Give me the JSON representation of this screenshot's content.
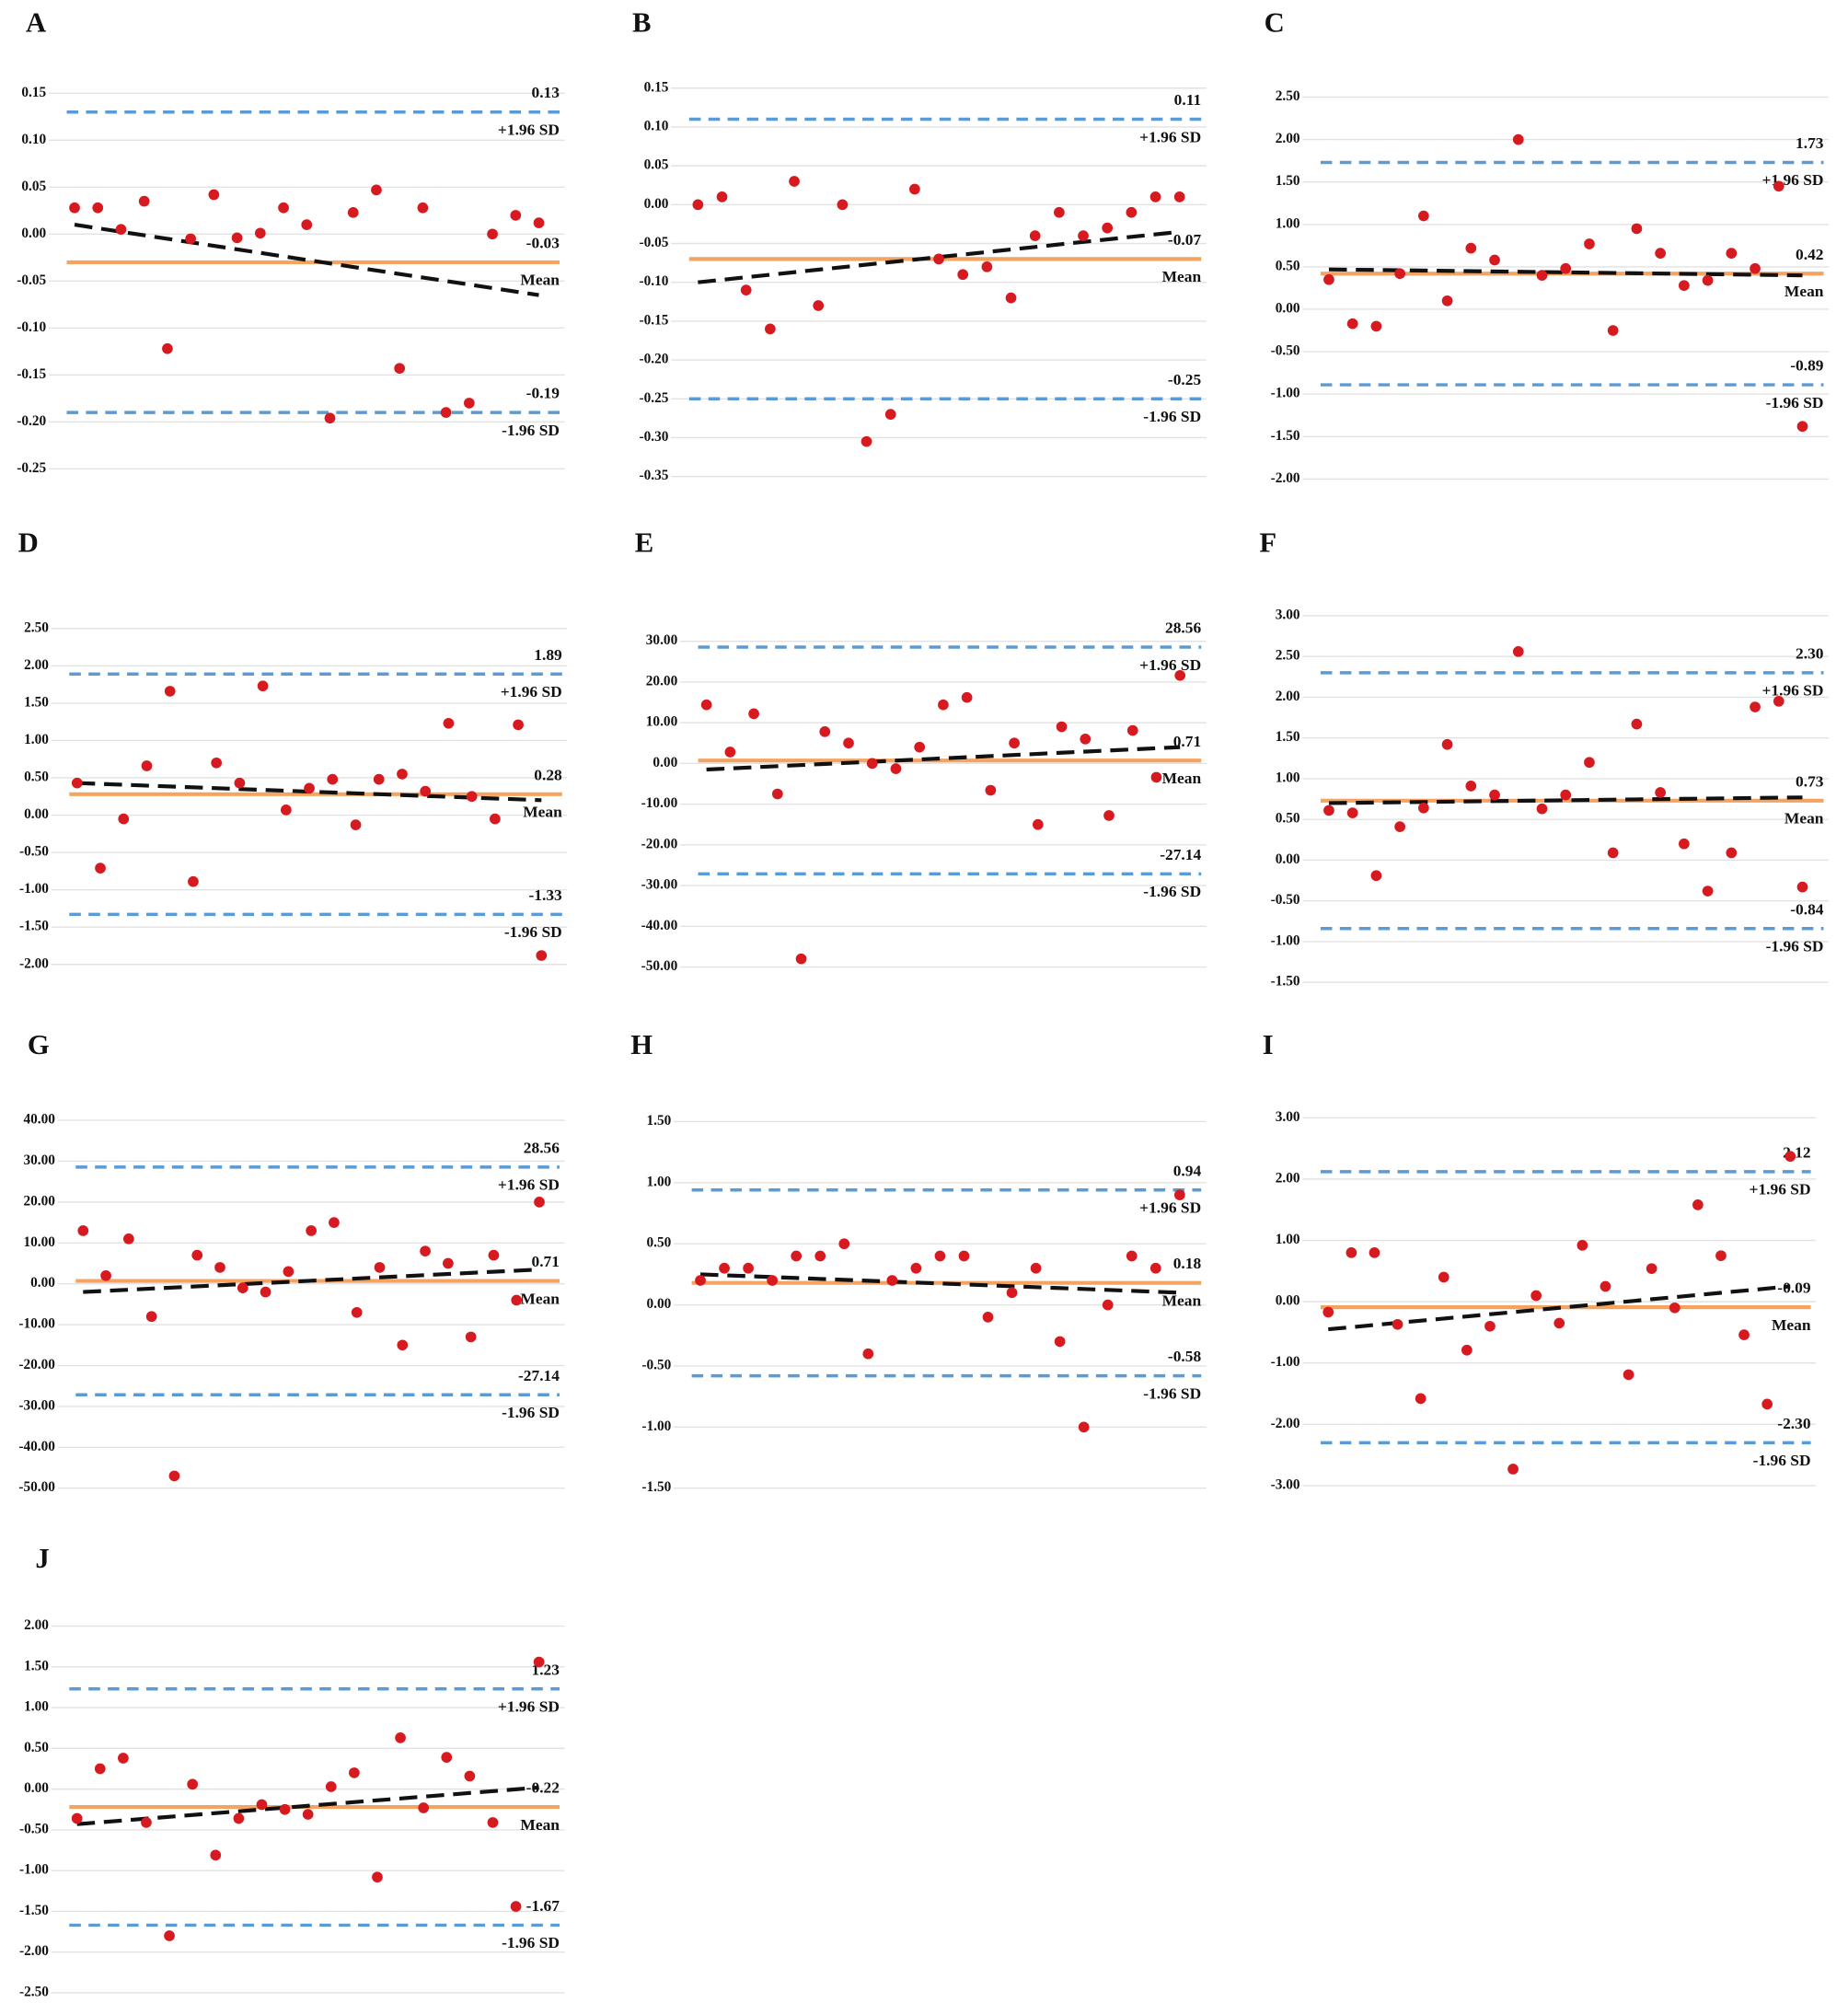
{
  "chart_data": [
    {
      "type": "scatter",
      "title": "A",
      "ylim": [
        -0.25,
        0.15
      ],
      "yticks": [
        0.15,
        {
          "value": 0.1,
          "label": "0.10"
        },
        0.05,
        {
          "value": 0,
          "label": "0.00"
        },
        -0.05,
        {
          "value": -0.1,
          "label": "-0.10"
        },
        -0.15,
        {
          "value": -0.2,
          "label": "-0.20"
        },
        -0.25
      ],
      "values": [
        0.028,
        0.028,
        0.005,
        0.035,
        -0.122,
        -0.005,
        0.042,
        -0.004,
        0.001,
        0.028,
        0.01,
        -0.196,
        0.023,
        0.047,
        -0.143,
        0.028,
        -0.19,
        -0.18,
        0.0,
        0.02,
        0.012
      ],
      "limits": [
        {
          "name": "+1.96 SD",
          "value": 0.13
        },
        {
          "name": "Mean",
          "value": -0.03
        },
        {
          "name": "-1.96 SD",
          "value": -0.19
        }
      ],
      "trend": [
        0.01,
        -0.065
      ]
    },
    {
      "type": "scatter",
      "title": "B",
      "ylim": [
        -0.35,
        0.15
      ],
      "yticks": [
        0.15,
        {
          "value": 0.1,
          "label": "0.10"
        },
        0.05,
        {
          "value": 0,
          "label": "0.00"
        },
        -0.05,
        {
          "value": -0.1,
          "label": "-0.10"
        },
        -0.15,
        {
          "value": -0.2,
          "label": "-0.20"
        },
        -0.25,
        {
          "value": -0.3,
          "label": "-0.30"
        },
        -0.35
      ],
      "values": [
        0.0,
        0.01,
        -0.11,
        -0.16,
        0.03,
        -0.13,
        0.0,
        -0.305,
        -0.27,
        0.02,
        -0.07,
        -0.09,
        -0.08,
        -0.12,
        -0.04,
        -0.01,
        -0.04,
        -0.03,
        -0.01,
        0.01,
        0.01
      ],
      "limits": [
        {
          "name": "+1.96 SD",
          "value": 0.11
        },
        {
          "name": "Mean",
          "value": -0.07
        },
        {
          "name": "-1.96 SD",
          "value": -0.25
        }
      ],
      "trend": [
        -0.1,
        -0.035
      ]
    },
    {
      "type": "scatter",
      "title": "C",
      "ylim": [
        -2,
        2.5
      ],
      "yticks": [
        {
          "value": 2.5,
          "label": "2.50"
        },
        {
          "value": 2,
          "label": "2.00"
        },
        {
          "value": 1.5,
          "label": "1.50"
        },
        {
          "value": 1,
          "label": "1.00"
        },
        {
          "value": 0.5,
          "label": "0.50"
        },
        {
          "value": 0,
          "label": "0.00"
        },
        {
          "value": -0.5,
          "label": "-0.50"
        },
        {
          "value": -1,
          "label": "-1.00"
        },
        {
          "value": -1.5,
          "label": "-1.50"
        },
        {
          "value": -2,
          "label": "-2.00"
        }
      ],
      "values": [
        0.35,
        -0.17,
        -0.2,
        0.42,
        1.1,
        0.1,
        0.72,
        0.58,
        2.0,
        0.4,
        0.48,
        0.77,
        -0.25,
        0.95,
        0.66,
        0.28,
        0.34,
        0.66,
        0.48,
        1.45,
        -1.38
      ],
      "limits": [
        {
          "name": "+1.96 SD",
          "value": 1.73
        },
        {
          "name": "Mean",
          "value": 0.42
        },
        {
          "name": "-1.96 SD",
          "value": -0.89
        }
      ],
      "trend": [
        0.47,
        0.4
      ]
    },
    {
      "type": "scatter",
      "title": "D",
      "ylim": [
        -2,
        2.5
      ],
      "yticks": [
        {
          "value": 2.5,
          "label": "2.50"
        },
        {
          "value": 2,
          "label": "2.00"
        },
        {
          "value": 1.5,
          "label": "1.50"
        },
        {
          "value": 1,
          "label": "1.00"
        },
        {
          "value": 0.5,
          "label": "0.50"
        },
        {
          "value": 0,
          "label": "0.00"
        },
        {
          "value": -0.5,
          "label": "-0.50"
        },
        {
          "value": -1,
          "label": "-1.00"
        },
        {
          "value": -1.5,
          "label": "-1.50"
        },
        {
          "value": -2,
          "label": "-2.00"
        }
      ],
      "values": [
        0.43,
        -0.71,
        -0.05,
        0.66,
        1.66,
        -0.89,
        0.7,
        0.43,
        1.73,
        0.07,
        0.36,
        0.48,
        -0.13,
        0.48,
        0.55,
        0.32,
        1.23,
        0.25,
        -0.05,
        1.21,
        -1.88
      ],
      "limits": [
        {
          "name": "+1.96 SD",
          "value": 1.89
        },
        {
          "name": "Mean",
          "value": 0.28
        },
        {
          "name": "-1.96 SD",
          "value": -1.33
        }
      ],
      "trend": [
        0.43,
        0.2
      ]
    },
    {
      "type": "scatter",
      "title": "E",
      "ylim": [
        -50,
        30
      ],
      "yticks": [
        {
          "value": 30,
          "label": "30.00"
        },
        {
          "value": 20,
          "label": "20.00"
        },
        {
          "value": 10,
          "label": "10.00"
        },
        {
          "value": 0,
          "label": "0.00"
        },
        {
          "value": -10,
          "label": "-10.00"
        },
        {
          "value": -20,
          "label": "-20.00"
        },
        {
          "value": -30,
          "label": "-30.00"
        },
        {
          "value": -40,
          "label": "-40.00"
        },
        {
          "value": -50,
          "label": "-50.00"
        }
      ],
      "values": [
        14.4,
        2.8,
        12.2,
        -7.5,
        -48,
        7.8,
        5,
        0,
        -1.3,
        4,
        14.4,
        16.2,
        -6.6,
        5,
        -15,
        9,
        6,
        -12.8,
        8.1,
        -3.4,
        21.6
      ],
      "limits": [
        {
          "name": "+1.96 SD",
          "value": 28.56
        },
        {
          "name": "Mean",
          "value": 0.71
        },
        {
          "name": "-1.96 SD",
          "value": -27.14
        }
      ],
      "trend": [
        -1.5,
        4
      ]
    },
    {
      "type": "scatter",
      "title": "F",
      "ylim": [
        -1.5,
        3
      ],
      "yticks": [
        {
          "value": 3,
          "label": "3.00"
        },
        {
          "value": 2.5,
          "label": "2.50"
        },
        {
          "value": 2,
          "label": "2.00"
        },
        {
          "value": 1.5,
          "label": "1.50"
        },
        {
          "value": 1,
          "label": "1.00"
        },
        {
          "value": 0.5,
          "label": "0.50"
        },
        {
          "value": 0,
          "label": "0.00"
        },
        {
          "value": -0.5,
          "label": "-0.50"
        },
        {
          "value": -1,
          "label": "-1.00"
        },
        {
          "value": -1.5,
          "label": "-1.50"
        }
      ],
      "values": [
        0.61,
        0.58,
        -0.19,
        0.41,
        0.64,
        1.42,
        0.91,
        0.8,
        2.56,
        0.63,
        0.8,
        1.2,
        0.09,
        1.67,
        0.83,
        0.2,
        -0.38,
        0.09,
        1.88,
        1.95,
        -0.33
      ],
      "limits": [
        {
          "name": "+1.96 SD",
          "value": 2.3,
          "value_label": "2.30"
        },
        {
          "name": "Mean",
          "value": 0.73
        },
        {
          "name": "-1.96 SD",
          "value": -0.84
        }
      ],
      "trend": [
        0.7,
        0.77
      ]
    },
    {
      "type": "scatter",
      "title": "G",
      "ylim": [
        -50,
        40
      ],
      "yticks": [
        {
          "value": 40,
          "label": "40.00"
        },
        {
          "value": 30,
          "label": "30.00"
        },
        {
          "value": 20,
          "label": "20.00"
        },
        {
          "value": 10,
          "label": "10.00"
        },
        {
          "value": 0,
          "label": "0.00"
        },
        {
          "value": -10,
          "label": "-10.00"
        },
        {
          "value": -20,
          "label": "-20.00"
        },
        {
          "value": -30,
          "label": "-30.00"
        },
        {
          "value": -40,
          "label": "-40.00"
        },
        {
          "value": -50,
          "label": "-50.00"
        }
      ],
      "values": [
        13,
        2,
        11,
        -8,
        -47,
        7,
        4,
        -1,
        -2,
        3,
        13,
        15,
        -7,
        4,
        -15,
        8,
        5,
        -13,
        7,
        -4,
        20
      ],
      "limits": [
        {
          "name": "+1.96 SD",
          "value": 28.56
        },
        {
          "name": "Mean",
          "value": 0.71
        },
        {
          "name": "-1.96 SD",
          "value": -27.14
        }
      ],
      "trend": [
        -2,
        3.5
      ]
    },
    {
      "type": "scatter",
      "title": "H",
      "ylim": [
        -1.5,
        1.5
      ],
      "yticks": [
        {
          "value": 1.5,
          "label": "1.50"
        },
        {
          "value": 1,
          "label": "1.00"
        },
        {
          "value": 0.5,
          "label": "0.50"
        },
        {
          "value": 0,
          "label": "0.00"
        },
        {
          "value": -0.5,
          "label": "-0.50"
        },
        {
          "value": -1,
          "label": "-1.00"
        },
        {
          "value": -1.5,
          "label": "-1.50"
        }
      ],
      "values": [
        0.2,
        0.3,
        0.3,
        0.2,
        0.4,
        0.4,
        0.5,
        -0.4,
        0.2,
        0.3,
        0.4,
        0.4,
        -0.1,
        0.1,
        0.3,
        -0.3,
        -1.0,
        0.0,
        0.4,
        0.3,
        0.9
      ],
      "limits": [
        {
          "name": "+1.96 SD",
          "value": 0.94
        },
        {
          "name": "Mean",
          "value": 0.18
        },
        {
          "name": "-1.96 SD",
          "value": -0.58
        }
      ],
      "trend": [
        0.25,
        0.1
      ]
    },
    {
      "type": "scatter",
      "title": "I",
      "ylim": [
        -3,
        3
      ],
      "yticks": [
        {
          "value": 3,
          "label": "3.00"
        },
        {
          "value": 2,
          "label": "2.00"
        },
        {
          "value": 1,
          "label": "1.00"
        },
        {
          "value": 0,
          "label": "0.00"
        },
        {
          "value": -1,
          "label": "-1.00"
        },
        {
          "value": -2,
          "label": "-2.00"
        },
        {
          "value": -3,
          "label": "-3.00"
        }
      ],
      "values": [
        -0.17,
        0.8,
        0.8,
        -0.37,
        -1.58,
        0.4,
        -0.79,
        -0.4,
        -2.73,
        0.1,
        -0.35,
        0.92,
        0.25,
        -1.19,
        0.54,
        -0.1,
        1.58,
        0.75,
        -0.54,
        -1.67,
        2.37
      ],
      "limits": [
        {
          "name": "+1.96 SD",
          "value": 2.12
        },
        {
          "name": "Mean",
          "value": -0.09
        },
        {
          "name": "-1.96 SD",
          "value": -2.3,
          "value_label": "-2.30"
        }
      ],
      "trend": [
        -0.45,
        0.25
      ]
    },
    {
      "type": "scatter",
      "title": "J",
      "ylim": [
        -2.5,
        2
      ],
      "yticks": [
        {
          "value": 2,
          "label": "2.00"
        },
        {
          "value": 1.5,
          "label": "1.50"
        },
        {
          "value": 1,
          "label": "1.00"
        },
        {
          "value": 0.5,
          "label": "0.50"
        },
        {
          "value": 0,
          "label": "0.00"
        },
        {
          "value": -0.5,
          "label": "-0.50"
        },
        {
          "value": -1,
          "label": "-1.00"
        },
        {
          "value": -1.5,
          "label": "-1.50"
        },
        {
          "value": -2,
          "label": "-2.00"
        },
        {
          "value": -2.5,
          "label": "-2.50"
        }
      ],
      "values": [
        -0.36,
        0.25,
        0.38,
        -0.41,
        -1.8,
        0.06,
        -0.81,
        -0.36,
        -0.19,
        -0.25,
        -0.31,
        0.03,
        0.2,
        -1.08,
        0.63,
        -0.23,
        0.39,
        0.16,
        -0.41,
        -1.44,
        1.56
      ],
      "limits": [
        {
          "name": "+1.96 SD",
          "value": 1.23
        },
        {
          "name": "Mean",
          "value": -0.22
        },
        {
          "name": "-1.96 SD",
          "value": -1.67
        }
      ],
      "trend": [
        -0.43,
        0.02
      ]
    }
  ]
}
